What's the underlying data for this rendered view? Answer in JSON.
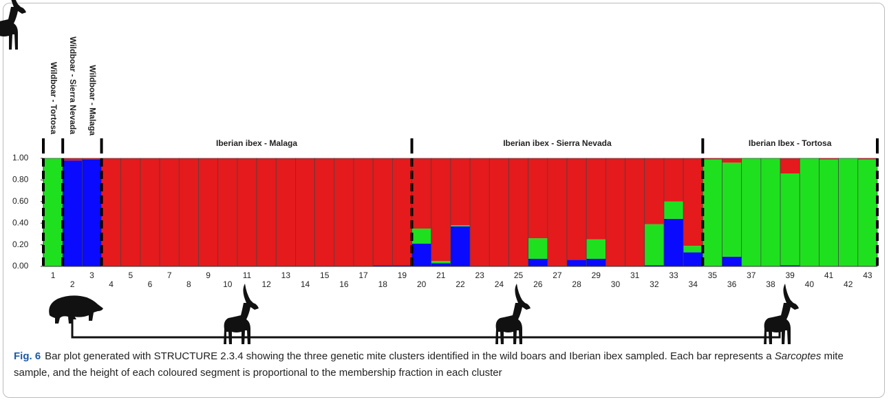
{
  "chart_data": {
    "type": "bar",
    "stacked": true,
    "categories": [
      "1",
      "2",
      "3",
      "4",
      "5",
      "6",
      "7",
      "8",
      "9",
      "10",
      "11",
      "12",
      "13",
      "14",
      "15",
      "16",
      "17",
      "18",
      "19",
      "20",
      "21",
      "22",
      "23",
      "24",
      "25",
      "26",
      "27",
      "28",
      "29",
      "30",
      "31",
      "32",
      "33",
      "34",
      "35",
      "36",
      "37",
      "38",
      "39",
      "40",
      "41",
      "42",
      "43"
    ],
    "series": [
      {
        "color": "#0a0aff",
        "values": [
          0,
          0.98,
          0.99,
          0,
          0,
          0,
          0,
          0,
          0,
          0,
          0,
          0,
          0,
          0,
          0,
          0,
          0,
          0.01,
          0.01,
          0.21,
          0.03,
          0.37,
          0,
          0,
          0,
          0.07,
          0,
          0.06,
          0.07,
          0,
          0,
          0.01,
          0.44,
          0.13,
          0,
          0.09,
          0,
          0,
          0.01,
          0,
          0,
          0,
          0
        ]
      },
      {
        "color": "#1fe01f",
        "values": [
          1,
          0,
          0,
          0,
          0,
          0,
          0,
          0,
          0,
          0,
          0,
          0,
          0,
          0,
          0,
          0,
          0,
          0,
          0,
          0.14,
          0.02,
          0.01,
          0,
          0,
          0,
          0.19,
          0,
          0,
          0.18,
          0,
          0,
          0.38,
          0.16,
          0.06,
          0.99,
          0.87,
          1,
          1,
          0.85,
          1,
          0.99,
          1,
          0.99
        ]
      },
      {
        "color": "#e41a1c",
        "values": [
          0,
          0.02,
          0.01,
          1,
          1,
          1,
          1,
          1,
          1,
          1,
          1,
          1,
          1,
          1,
          1,
          1,
          1,
          0.99,
          0.99,
          0.65,
          0.95,
          0.62,
          1,
          1,
          1,
          0.74,
          1,
          0.94,
          0.75,
          1,
          1,
          0.61,
          0.4,
          0.81,
          0.01,
          0.04,
          0,
          0,
          0.14,
          0,
          0.01,
          0,
          0.01
        ]
      }
    ],
    "ylim": [
      0,
      1
    ],
    "yticks": [
      {
        "value": 0,
        "label": "0.00"
      },
      {
        "value": 0.2,
        "label": "0.20"
      },
      {
        "value": 0.4,
        "label": "0.40"
      },
      {
        "value": 0.6,
        "label": "0.60"
      },
      {
        "value": 0.8,
        "label": "0.80"
      },
      {
        "value": 1,
        "label": "1.00"
      }
    ],
    "groups": [
      {
        "label": "Wildboar - Tortosa"
      },
      {
        "label": "Wildboar - Sierra Nevada"
      },
      {
        "label": "Wildboar - Malaga"
      },
      {
        "label": "Iberian ibex - Malaga"
      },
      {
        "label": "Iberian ibex - Sierra Nevada"
      },
      {
        "label": "Iberian Ibex - Tortosa"
      }
    ]
  },
  "caption": {
    "label": "Fig. 6",
    "text_1": "Bar plot generated with STRUCTURE 2.3.4 showing the three genetic mite clusters identified in the wild boars and Iberian ibex sampled. Each bar represents a",
    "italic": "Sarcoptes",
    "text_2": "mite sample, and the height of each coloured segment is proportional to the membership fraction in each cluster"
  }
}
